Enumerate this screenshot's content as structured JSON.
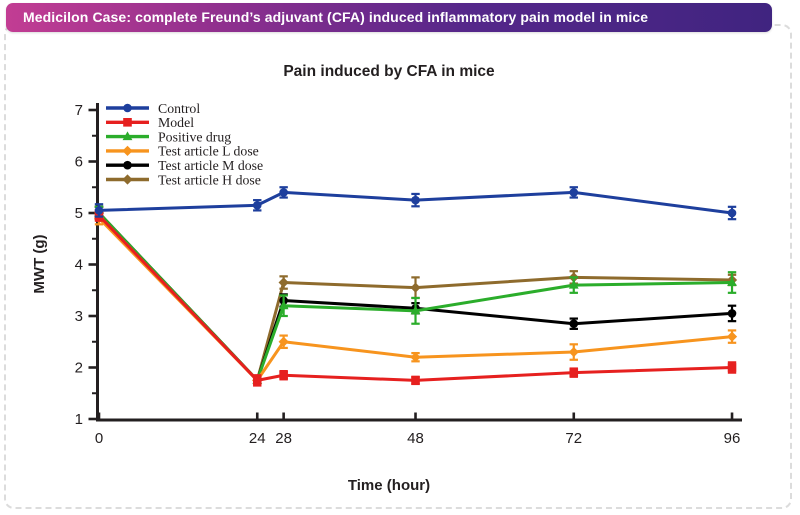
{
  "banner": {
    "title": "Medicilon Case: complete Freund’s adjuvant (CFA) induced inflammatory pain model in mice",
    "gradient_left": "#c23d93",
    "gradient_right": "#402480"
  },
  "chart_data": {
    "type": "line",
    "title": "Pain induced by CFA in mice",
    "xlabel": "Time (hour)",
    "ylabel": "MWT (g)",
    "x": [
      0,
      24,
      28,
      48,
      72,
      96
    ],
    "xticks": [
      0,
      24,
      28,
      48,
      72,
      96
    ],
    "yticks": [
      1,
      2,
      3,
      4,
      5,
      6,
      7
    ],
    "yminorticks": [
      1.5,
      2.5,
      3.5,
      4.5,
      5.5,
      6.5
    ],
    "ylim": [
      1,
      7
    ],
    "xlim": [
      0,
      98
    ],
    "grid": false,
    "legend_position": "top-left",
    "axis_color": "#231f20",
    "series": [
      {
        "name": "Control",
        "color": "#1e3f9d",
        "marker": "circle",
        "values": [
          5.05,
          5.15,
          5.4,
          5.25,
          5.4,
          5.0
        ],
        "errors": [
          0.12,
          0.1,
          0.1,
          0.12,
          0.1,
          0.12
        ]
      },
      {
        "name": "Model",
        "color": "#e6201f",
        "marker": "square",
        "values": [
          4.95,
          1.75,
          1.85,
          1.75,
          1.9,
          2.0
        ],
        "errors": [
          0.1,
          0.1,
          0.08,
          0.07,
          0.08,
          0.1
        ]
      },
      {
        "name": "Positive drug",
        "color": "#2bad2b",
        "marker": "triangle",
        "values": [
          5.0,
          1.75,
          3.2,
          3.1,
          3.6,
          3.65
        ],
        "errors": [
          0.12,
          0.05,
          0.2,
          0.25,
          0.15,
          0.2
        ]
      },
      {
        "name": "Test article L dose",
        "color": "#f7941e",
        "marker": "diamond",
        "values": [
          4.9,
          1.75,
          2.5,
          2.2,
          2.3,
          2.6
        ],
        "errors": [
          0.12,
          0.05,
          0.12,
          0.08,
          0.15,
          0.12
        ]
      },
      {
        "name": "Test article M dose",
        "color": "#000000",
        "marker": "circle",
        "values": [
          5.0,
          1.75,
          3.3,
          3.15,
          2.85,
          3.05
        ],
        "errors": [
          0.12,
          0.05,
          0.12,
          0.1,
          0.1,
          0.15
        ]
      },
      {
        "name": "Test article H dose",
        "color": "#8e6b2d",
        "marker": "diamond",
        "values": [
          5.0,
          1.75,
          3.65,
          3.55,
          3.75,
          3.7
        ],
        "errors": [
          0.12,
          0.05,
          0.12,
          0.2,
          0.12,
          0.1
        ]
      }
    ],
    "draw_order": [
      5,
      4,
      2,
      3,
      1,
      0
    ]
  }
}
